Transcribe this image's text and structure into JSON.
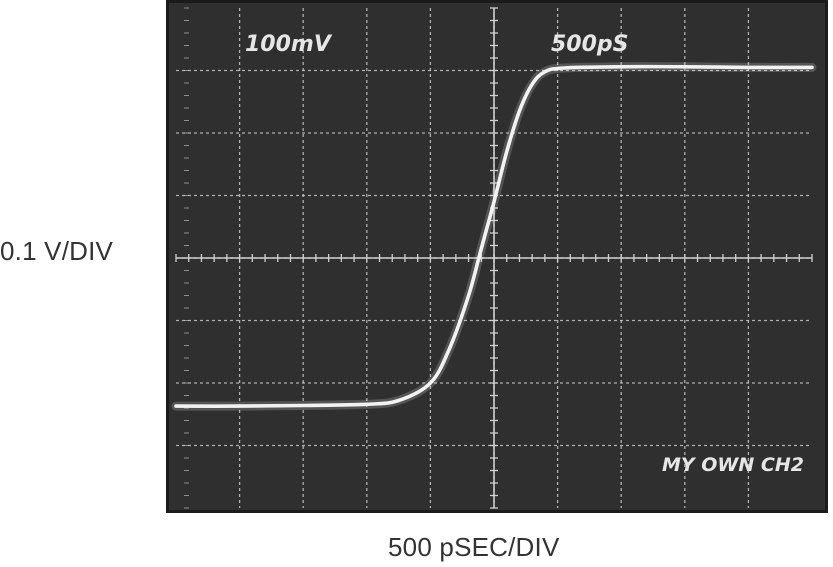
{
  "labels": {
    "y_axis": "0.1 V/DIV",
    "x_axis": "500 pSEC/DIV"
  },
  "screen": {
    "volts_readout": "100mV",
    "time_readout": "500pS",
    "channel_readout": "MY OWN CH2"
  },
  "colors": {
    "screen_bg": "#2f2f2f",
    "grid": "#cfcfcf",
    "trace": "#f2f2f2",
    "frame": "#1b1b1b",
    "label_text": "#333333"
  },
  "chart_data": {
    "type": "line",
    "title": "",
    "xlabel": "500 pSEC/DIV",
    "ylabel": "0.1 V/DIV",
    "grid": true,
    "divisions": {
      "x": 10,
      "y": 8
    },
    "xlim": [
      0,
      10
    ],
    "ylim": [
      0,
      8
    ],
    "series": [
      {
        "points": [
          [
            0.0,
            1.63
          ],
          [
            1.0,
            1.63
          ],
          [
            2.0,
            1.64
          ],
          [
            3.0,
            1.66
          ],
          [
            3.5,
            1.72
          ],
          [
            4.0,
            2.0
          ],
          [
            4.3,
            2.55
          ],
          [
            4.6,
            3.4
          ],
          [
            4.8,
            4.15
          ],
          [
            5.0,
            4.9
          ],
          [
            5.2,
            5.7
          ],
          [
            5.4,
            6.35
          ],
          [
            5.6,
            6.78
          ],
          [
            5.8,
            6.98
          ],
          [
            6.1,
            7.04
          ],
          [
            7.0,
            7.06
          ],
          [
            8.0,
            7.06
          ],
          [
            9.0,
            7.05
          ],
          [
            10.0,
            7.05
          ]
        ]
      }
    ]
  }
}
